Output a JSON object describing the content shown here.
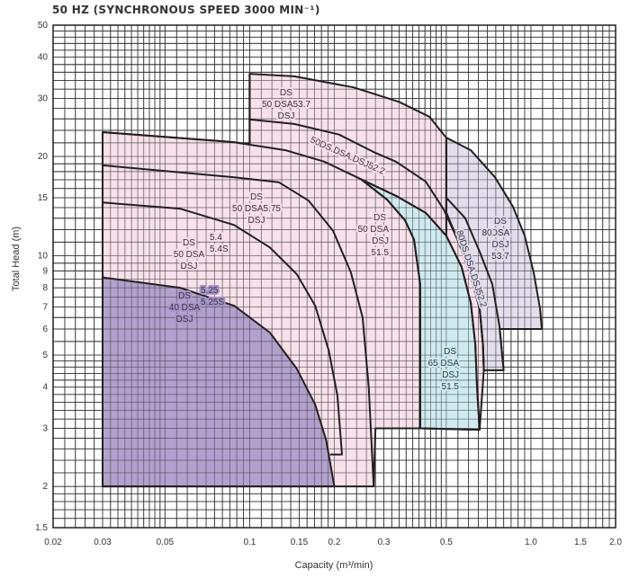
{
  "chart_data": {
    "type": "area",
    "title": "50 HZ (SYNCHRONOUS SPEED 3000 MIN⁻¹)",
    "xlabel": "Capacity (m³/min)",
    "ylabel": "Total Head (m)",
    "xscale": "log",
    "yscale": "log",
    "xlim": [
      0.02,
      2.0
    ],
    "ylim": [
      1.5,
      50
    ],
    "grid": true,
    "xticks": [
      "0.02",
      "0.03",
      "0.05",
      "0.1",
      "0.15",
      "0.2",
      "0.3",
      "0.5",
      "1.0",
      "1.5",
      "2.0"
    ],
    "xtick_values": [
      0.02,
      0.03,
      0.05,
      0.1,
      0.15,
      0.2,
      0.3,
      0.5,
      1.0,
      1.5,
      2.0
    ],
    "yticks": [
      "50",
      "40",
      "30",
      "20",
      "15",
      "10",
      "9",
      "8",
      "7",
      "6",
      "5",
      "4",
      "3",
      "2",
      "1.5"
    ],
    "ytick_values": [
      50,
      40,
      30,
      20,
      15,
      10,
      9,
      8,
      7,
      6,
      5,
      4,
      3,
      2,
      1.5
    ],
    "colors": {
      "pink": "#f7dce7",
      "purple": "#a695c9",
      "cyan": "#c8ebf1",
      "lavender": "#ddd8ea",
      "line": "#231f20",
      "grid": "#3a3a3a"
    },
    "regions": [
      {
        "id": "pink-50",
        "fill": "#f7dce7",
        "points": [
          [
            0.03,
            2
          ],
          [
            0.03,
            23.7
          ],
          [
            0.088,
            22.1
          ],
          [
            0.1,
            21.8
          ],
          [
            0.1,
            35.6
          ],
          [
            0.144,
            35.0
          ],
          [
            0.234,
            32.4
          ],
          [
            0.339,
            29.3
          ],
          [
            0.435,
            26.4
          ],
          [
            0.49,
            23.3
          ],
          [
            0.5,
            22.8
          ],
          [
            0.5,
            11.5
          ],
          [
            0.5,
            13.5
          ],
          [
            0.555,
            10.95
          ],
          [
            0.611,
            8.7
          ],
          [
            0.657,
            6.93
          ],
          [
            0.675,
            5.39
          ],
          [
            0.68,
            4.5
          ],
          [
            0.657,
            2.97
          ],
          [
            0.404,
            3
          ],
          [
            0.28,
            3
          ],
          [
            0.276,
            2
          ]
        ]
      },
      {
        "id": "lavender-80",
        "fill": "#ddd8ea",
        "points": [
          [
            0.5,
            22.8
          ],
          [
            0.611,
            20.9
          ],
          [
            0.745,
            17.3
          ],
          [
            0.863,
            14.1
          ],
          [
            0.95,
            11.5
          ],
          [
            1.023,
            8.9
          ],
          [
            1.077,
            6.93
          ],
          [
            1.093,
            6.0
          ],
          [
            0.775,
            6.0
          ],
          [
            0.8,
            4.5
          ],
          [
            0.68,
            4.5
          ],
          [
            0.675,
            5.39
          ],
          [
            0.657,
            6.93
          ],
          [
            0.611,
            8.7
          ],
          [
            0.555,
            10.95
          ],
          [
            0.5,
            13.5
          ]
        ]
      },
      {
        "id": "cyan-65",
        "fill": "#c8ebf1",
        "points": [
          [
            0.25,
            17.0
          ],
          [
            0.331,
            15.2
          ],
          [
            0.4225,
            13.5
          ],
          [
            0.5,
            11.5
          ],
          [
            0.567,
            9.25
          ],
          [
            0.611,
            7.2
          ],
          [
            0.634,
            5.39
          ],
          [
            0.643,
            4.02
          ],
          [
            0.657,
            2.97
          ],
          [
            0.404,
            3
          ],
          [
            0.404,
            8.2
          ],
          [
            0.384,
            11.2
          ],
          [
            0.357,
            12.8
          ],
          [
            0.308,
            14.8
          ]
        ]
      },
      {
        "id": "purple-40",
        "fill": "#a695c9",
        "points": [
          [
            0.03,
            2
          ],
          [
            0.03,
            8.6
          ],
          [
            0.0565,
            8.0
          ],
          [
            0.088,
            7.06
          ],
          [
            0.118,
            5.85
          ],
          [
            0.147,
            4.55
          ],
          [
            0.171,
            3.54
          ],
          [
            0.187,
            2.76
          ],
          [
            0.2,
            2
          ]
        ]
      }
    ],
    "curves": [
      {
        "id": "curve-51-5",
        "points": [
          [
            0.03,
            23.7
          ],
          [
            0.088,
            22.1
          ],
          [
            0.134,
            20.9
          ],
          [
            0.184,
            19.3
          ],
          [
            0.331,
            15.2
          ],
          [
            0.4225,
            13.5
          ],
          [
            0.5,
            11.5
          ],
          [
            0.567,
            9.25
          ],
          [
            0.611,
            7.2
          ],
          [
            0.634,
            5.39
          ],
          [
            0.643,
            4.02
          ],
          [
            0.657,
            2.97
          ]
        ]
      },
      {
        "id": "curve-52-2",
        "points": [
          [
            0.1,
            25.9
          ],
          [
            0.144,
            25.1
          ],
          [
            0.208,
            23.3
          ],
          [
            0.28,
            20.5
          ],
          [
            0.331,
            19.3
          ],
          [
            0.4225,
            16.8
          ],
          [
            0.49,
            13.8
          ],
          [
            0.555,
            10.95
          ],
          [
            0.611,
            8.7
          ],
          [
            0.657,
            6.93
          ],
          [
            0.675,
            5.39
          ],
          [
            0.68,
            4.5
          ]
        ]
      },
      {
        "id": "curve-80-52-2",
        "points": [
          [
            0.5,
            15.0
          ],
          [
            0.584,
            13.0
          ],
          [
            0.657,
            10.3
          ],
          [
            0.729,
            8.2
          ],
          [
            0.773,
            6.11
          ],
          [
            0.8,
            4.5
          ]
        ]
      },
      {
        "id": "curve-5-75",
        "points": [
          [
            0.03,
            18.8
          ],
          [
            0.088,
            17.3
          ],
          [
            0.127,
            16.7
          ],
          [
            0.162,
            14.7
          ],
          [
            0.198,
            11.9
          ],
          [
            0.229,
            8.9
          ],
          [
            0.252,
            6.5
          ],
          [
            0.265,
            4.0
          ],
          [
            0.276,
            2
          ]
        ]
      },
      {
        "id": "curve-5-4",
        "points": [
          [
            0.03,
            14.5
          ],
          [
            0.0565,
            13.9
          ],
          [
            0.088,
            12.4
          ],
          [
            0.118,
            10.6
          ],
          [
            0.147,
            8.8
          ],
          [
            0.171,
            7.06
          ],
          [
            0.191,
            5.16
          ],
          [
            0.205,
            3.77
          ],
          [
            0.213,
            2.5
          ],
          [
            0.193,
            2.5
          ]
        ]
      },
      {
        "id": "curve-65-left",
        "points": [
          [
            0.25,
            17.0
          ],
          [
            0.308,
            14.8
          ],
          [
            0.357,
            12.8
          ],
          [
            0.384,
            11.2
          ],
          [
            0.404,
            8.2
          ],
          [
            0.404,
            3
          ]
        ]
      },
      {
        "id": "divider-0-1",
        "points": [
          [
            0.1,
            21.8
          ],
          [
            0.1,
            35.6
          ]
        ]
      },
      {
        "id": "divider-0-5",
        "points": [
          [
            0.5,
            22.8
          ],
          [
            0.5,
            11.5
          ]
        ]
      }
    ],
    "labels": [
      {
        "id": "label-50-53-7",
        "lines": [
          "DS",
          "50 DSA53.7",
          "DSJ"
        ],
        "bg": "#f7dce7"
      },
      {
        "id": "label-50-52-2",
        "lines": [
          "50DS.DSA.DSJ52.2"
        ],
        "bg": "#f7dce7"
      },
      {
        "id": "label-50-5-75",
        "lines": [
          "DS",
          "50 DSA5.75",
          "DSJ"
        ],
        "bg": "#f7dce7"
      },
      {
        "id": "label-50-5-4",
        "lines": [
          "DS",
          "50 DSA",
          "DSJ"
        ],
        "side": [
          "5.4",
          "5.4S"
        ],
        "bg": "#f7dce7"
      },
      {
        "id": "label-50-51-5",
        "lines": [
          "DS",
          "50 DSA",
          "DSJ",
          "51.5"
        ],
        "bg": "#f7dce7"
      },
      {
        "id": "label-40-5-25",
        "lines": [
          "DS",
          "40 DSA",
          "DSJ"
        ],
        "side": [
          "5.25",
          "5.25S"
        ],
        "bg": "#a695c9"
      },
      {
        "id": "label-80-53-7",
        "lines": [
          "DS",
          "DSA",
          "DSJ",
          "53.7"
        ],
        "prefix": "80",
        "bg": "#ddd8ea"
      },
      {
        "id": "label-80-52-2",
        "lines": [
          "80DS.DSA.DSJ52.2"
        ],
        "bg": "#ddd8ea"
      },
      {
        "id": "label-65-51-5",
        "lines": [
          "DS",
          "65 DSA",
          "DSJ",
          "51.5"
        ],
        "bg": "#c8ebf1"
      }
    ]
  }
}
